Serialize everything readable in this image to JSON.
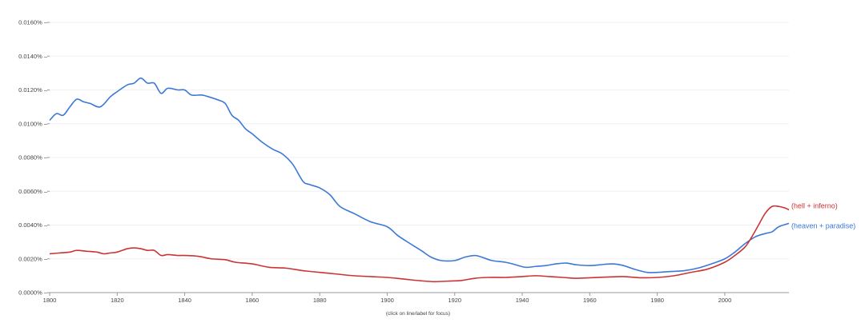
{
  "chart_data": {
    "type": "line",
    "title": "",
    "xlabel": "",
    "ylabel": "",
    "footer": "(click on line/label for focus)",
    "xlim": [
      1800,
      2019
    ],
    "ylim": [
      0,
      0.016
    ],
    "x_ticks": [
      1800,
      1820,
      1840,
      1860,
      1880,
      1900,
      1920,
      1940,
      1960,
      1980,
      2000
    ],
    "x_tick_labels": [
      "1800",
      "1820",
      "1840",
      "1860",
      "1880",
      "1900",
      "1920",
      "1940",
      "1960",
      "1980",
      "2000"
    ],
    "y_ticks": [
      0,
      0.002,
      0.004,
      0.006,
      0.008,
      0.01,
      0.012,
      0.014,
      0.016
    ],
    "y_tick_labels": [
      "0.0000%",
      "0.0020%",
      "0.0040%",
      "0.0060%",
      "0.0080%",
      "0.0100%",
      "0.0120%",
      "0.0140%",
      "0.0160%"
    ],
    "grid": true,
    "legend": "inline-right",
    "series": [
      {
        "name": "(heaven + paradise)",
        "color": "#3b78d8",
        "points": [
          [
            1800,
            0.0102
          ],
          [
            1802,
            0.0106
          ],
          [
            1804,
            0.0105
          ],
          [
            1806,
            0.011
          ],
          [
            1808,
            0.01145
          ],
          [
            1810,
            0.0113
          ],
          [
            1812,
            0.0112
          ],
          [
            1815,
            0.011
          ],
          [
            1818,
            0.0116
          ],
          [
            1820,
            0.0119
          ],
          [
            1823,
            0.0123
          ],
          [
            1825,
            0.0124
          ],
          [
            1827,
            0.0127
          ],
          [
            1829,
            0.0124
          ],
          [
            1831,
            0.0124
          ],
          [
            1833,
            0.0118
          ],
          [
            1835,
            0.0121
          ],
          [
            1838,
            0.012
          ],
          [
            1840,
            0.012
          ],
          [
            1842,
            0.0117
          ],
          [
            1845,
            0.0117
          ],
          [
            1847,
            0.0116
          ],
          [
            1850,
            0.0114
          ],
          [
            1852,
            0.0112
          ],
          [
            1854,
            0.0105
          ],
          [
            1856,
            0.0102
          ],
          [
            1858,
            0.0097
          ],
          [
            1860,
            0.0094
          ],
          [
            1863,
            0.0089
          ],
          [
            1866,
            0.0085
          ],
          [
            1869,
            0.0082
          ],
          [
            1872,
            0.0076
          ],
          [
            1875,
            0.0066
          ],
          [
            1877,
            0.0064
          ],
          [
            1880,
            0.0062
          ],
          [
            1883,
            0.0058
          ],
          [
            1886,
            0.0051
          ],
          [
            1890,
            0.0047
          ],
          [
            1895,
            0.0042
          ],
          [
            1900,
            0.0039
          ],
          [
            1903,
            0.0034
          ],
          [
            1906,
            0.003
          ],
          [
            1910,
            0.0025
          ],
          [
            1913,
            0.0021
          ],
          [
            1916,
            0.0019
          ],
          [
            1920,
            0.0019
          ],
          [
            1923,
            0.0021
          ],
          [
            1926,
            0.0022
          ],
          [
            1928,
            0.0021
          ],
          [
            1931,
            0.0019
          ],
          [
            1935,
            0.0018
          ],
          [
            1938,
            0.00165
          ],
          [
            1941,
            0.0015
          ],
          [
            1944,
            0.00155
          ],
          [
            1947,
            0.0016
          ],
          [
            1950,
            0.0017
          ],
          [
            1953,
            0.00175
          ],
          [
            1956,
            0.00165
          ],
          [
            1960,
            0.0016
          ],
          [
            1963,
            0.00165
          ],
          [
            1967,
            0.0017
          ],
          [
            1970,
            0.0016
          ],
          [
            1973,
            0.0014
          ],
          [
            1977,
            0.0012
          ],
          [
            1980,
            0.0012
          ],
          [
            1984,
            0.00125
          ],
          [
            1988,
            0.0013
          ],
          [
            1992,
            0.00145
          ],
          [
            1996,
            0.0017
          ],
          [
            2000,
            0.002
          ],
          [
            2003,
            0.0024
          ],
          [
            2006,
            0.0029
          ],
          [
            2009,
            0.0033
          ],
          [
            2012,
            0.0035
          ],
          [
            2014,
            0.0036
          ],
          [
            2016,
            0.0039
          ],
          [
            2019,
            0.0041
          ]
        ]
      },
      {
        "name": "(hell + inferno)",
        "color": "#cc3333",
        "points": [
          [
            1800,
            0.0023
          ],
          [
            1803,
            0.00235
          ],
          [
            1806,
            0.0024
          ],
          [
            1808,
            0.0025
          ],
          [
            1811,
            0.00245
          ],
          [
            1814,
            0.0024
          ],
          [
            1816,
            0.0023
          ],
          [
            1818,
            0.00235
          ],
          [
            1820,
            0.0024
          ],
          [
            1823,
            0.0026
          ],
          [
            1825,
            0.00265
          ],
          [
            1827,
            0.0026
          ],
          [
            1829,
            0.0025
          ],
          [
            1831,
            0.0025
          ],
          [
            1833,
            0.0022
          ],
          [
            1835,
            0.00225
          ],
          [
            1838,
            0.0022
          ],
          [
            1840,
            0.0022
          ],
          [
            1844,
            0.00215
          ],
          [
            1848,
            0.002
          ],
          [
            1852,
            0.00195
          ],
          [
            1855,
            0.0018
          ],
          [
            1860,
            0.0017
          ],
          [
            1865,
            0.0015
          ],
          [
            1870,
            0.00145
          ],
          [
            1875,
            0.0013
          ],
          [
            1880,
            0.0012
          ],
          [
            1885,
            0.0011
          ],
          [
            1890,
            0.001
          ],
          [
            1895,
            0.00095
          ],
          [
            1900,
            0.0009
          ],
          [
            1905,
            0.0008
          ],
          [
            1910,
            0.0007
          ],
          [
            1914,
            0.00065
          ],
          [
            1918,
            0.00068
          ],
          [
            1922,
            0.00072
          ],
          [
            1926,
            0.00085
          ],
          [
            1930,
            0.0009
          ],
          [
            1935,
            0.0009
          ],
          [
            1940,
            0.00095
          ],
          [
            1944,
            0.001
          ],
          [
            1948,
            0.00095
          ],
          [
            1952,
            0.0009
          ],
          [
            1956,
            0.00085
          ],
          [
            1960,
            0.00088
          ],
          [
            1965,
            0.00092
          ],
          [
            1970,
            0.00095
          ],
          [
            1975,
            0.00088
          ],
          [
            1980,
            0.0009
          ],
          [
            1985,
            0.001
          ],
          [
            1990,
            0.0012
          ],
          [
            1995,
            0.0014
          ],
          [
            2000,
            0.0018
          ],
          [
            2003,
            0.0022
          ],
          [
            2006,
            0.0027
          ],
          [
            2008,
            0.0033
          ],
          [
            2010,
            0.004
          ],
          [
            2012,
            0.0047
          ],
          [
            2014,
            0.0051
          ],
          [
            2016,
            0.0051
          ],
          [
            2018,
            0.005
          ],
          [
            2019,
            0.0049
          ]
        ]
      }
    ]
  }
}
